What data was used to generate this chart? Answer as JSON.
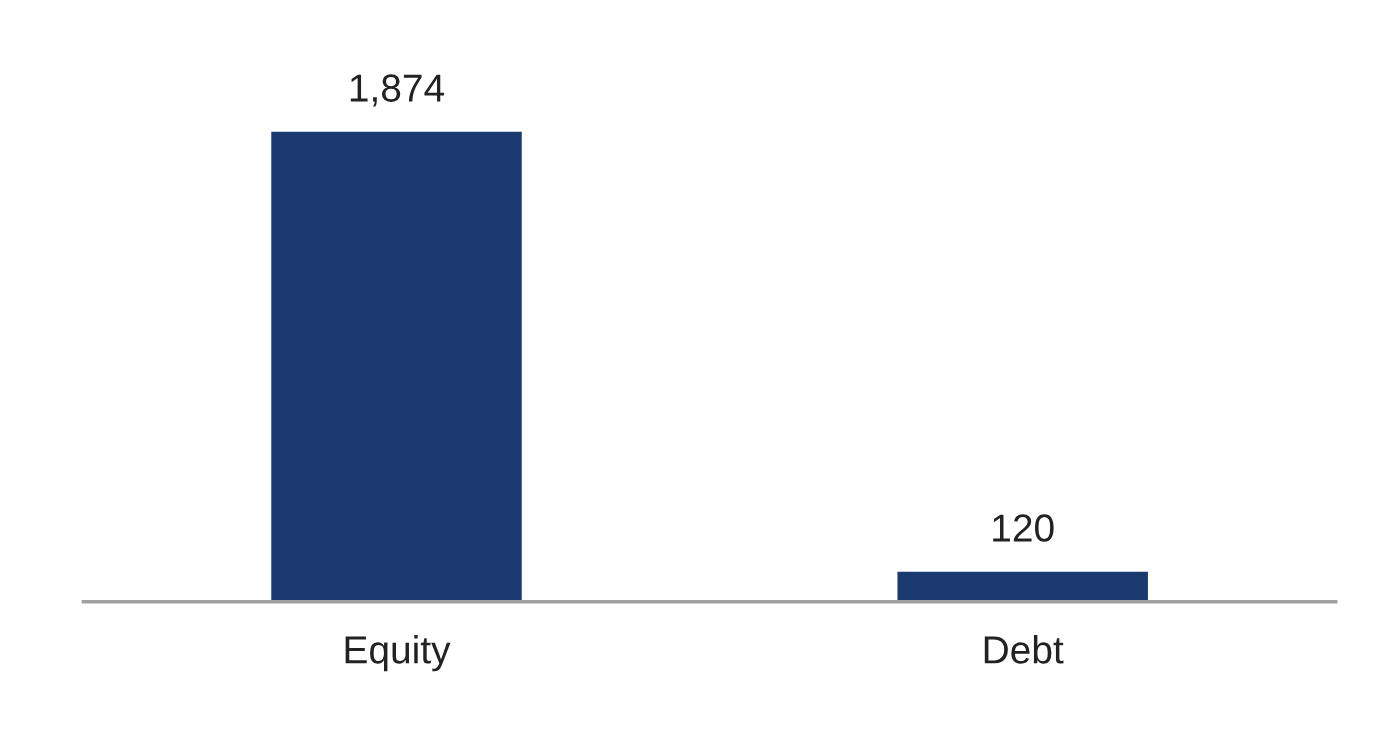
{
  "chart_data": {
    "type": "bar",
    "categories": [
      "Equity",
      "Debt"
    ],
    "values": [
      1874,
      120
    ],
    "color": "#1b3a6f",
    "value_labels": [
      "1,874",
      "120"
    ],
    "grid": false,
    "legend": false
  }
}
